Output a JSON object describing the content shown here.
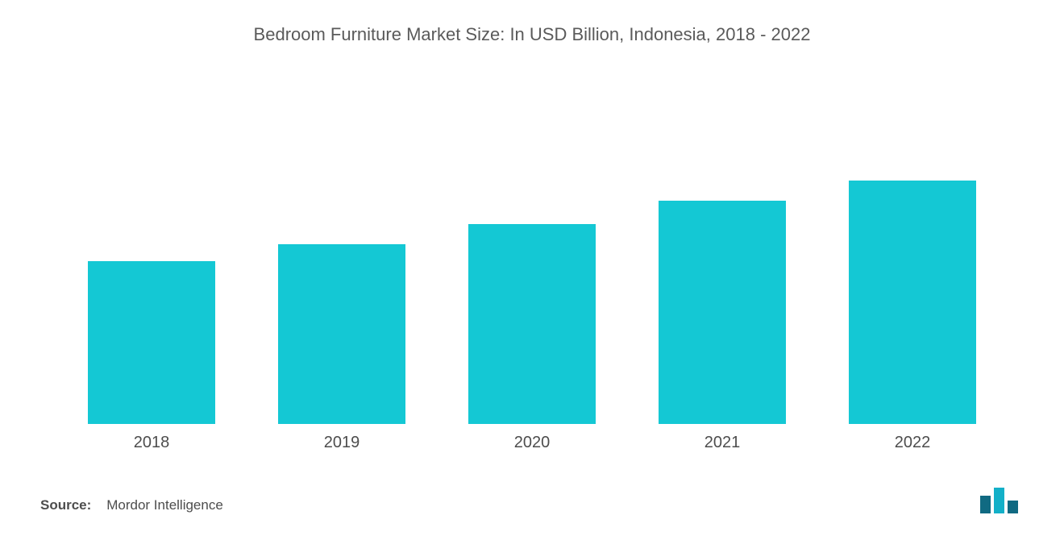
{
  "chart": {
    "type": "bar",
    "title": "Bedroom Furniture Market Size: In USD Billion, Indonesia, 2018 - 2022",
    "title_fontsize": 22,
    "title_color": "#5a5a5a",
    "categories": [
      "2018",
      "2019",
      "2020",
      "2021",
      "2022"
    ],
    "values": [
      48,
      53,
      59,
      66,
      72
    ],
    "ylim": [
      0,
      100
    ],
    "bar_color": "#14c8d4",
    "bar_width": 0.74,
    "background_color": "#ffffff",
    "xlabel_fontsize": 20,
    "xlabel_color": "#4d4d4d"
  },
  "footer": {
    "source_label": "Source:",
    "source_value": "Mordor Intelligence",
    "source_fontsize": 17,
    "source_color": "#4d4d4d"
  },
  "logo": {
    "bar1_color": "#106a82",
    "bar2_color": "#13b0c8",
    "bar3_color": "#106a82"
  }
}
